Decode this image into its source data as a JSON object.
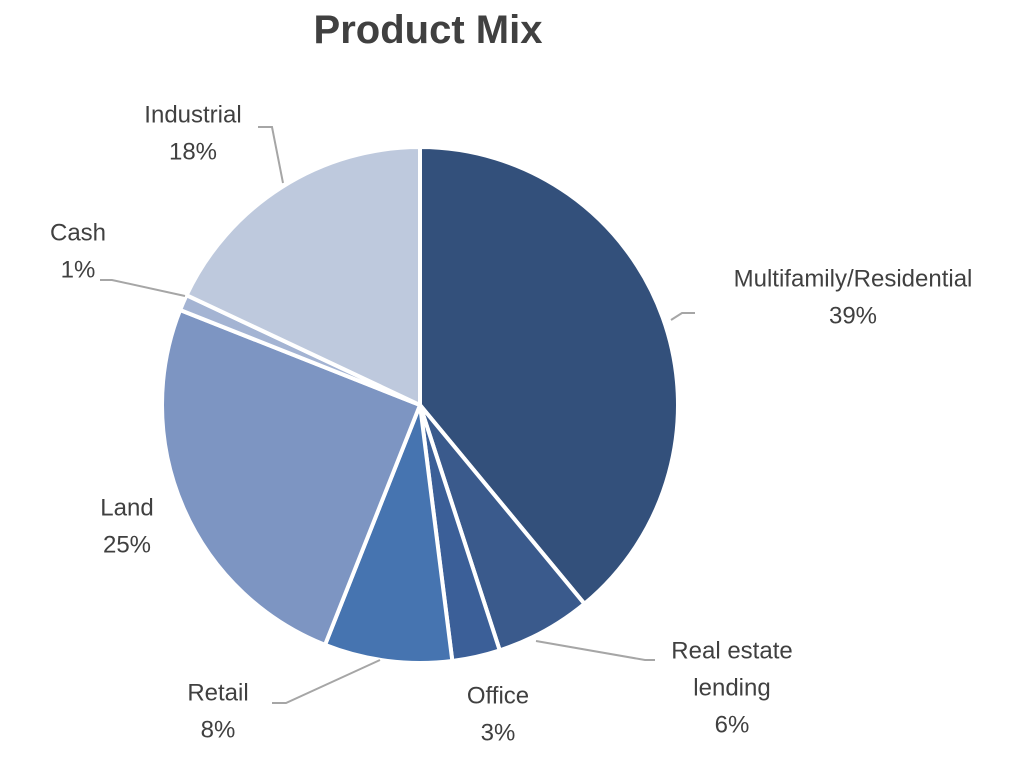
{
  "chart_data": {
    "type": "pie",
    "title": "Product Mix",
    "slices": [
      {
        "label": "Multifamily/Residential",
        "label_lines": [
          "Multifamily/Residential"
        ],
        "value": 39,
        "value_text": "39%",
        "color": "#33507b"
      },
      {
        "label": "Real estate lending",
        "label_lines": [
          "Real estate",
          "lending"
        ],
        "value": 6,
        "value_text": "6%",
        "color": "#3a5a8c"
      },
      {
        "label": "Office",
        "label_lines": [
          "Office"
        ],
        "value": 3,
        "value_text": "3%",
        "color": "#3b5f98"
      },
      {
        "label": "Retail",
        "label_lines": [
          "Retail"
        ],
        "value": 8,
        "value_text": "8%",
        "color": "#4674b0"
      },
      {
        "label": "Land",
        "label_lines": [
          "Land"
        ],
        "value": 25,
        "value_text": "25%",
        "color": "#7d95c2"
      },
      {
        "label": "Cash",
        "label_lines": [
          "Cash"
        ],
        "value": 1,
        "value_text": "1%",
        "color": "#a4b4d3"
      },
      {
        "label": "Industrial",
        "label_lines": [
          "Industrial"
        ],
        "value": 18,
        "value_text": "18%",
        "color": "#bec9dd"
      }
    ],
    "legend": "none",
    "data_labels": "outside with leader lines"
  }
}
